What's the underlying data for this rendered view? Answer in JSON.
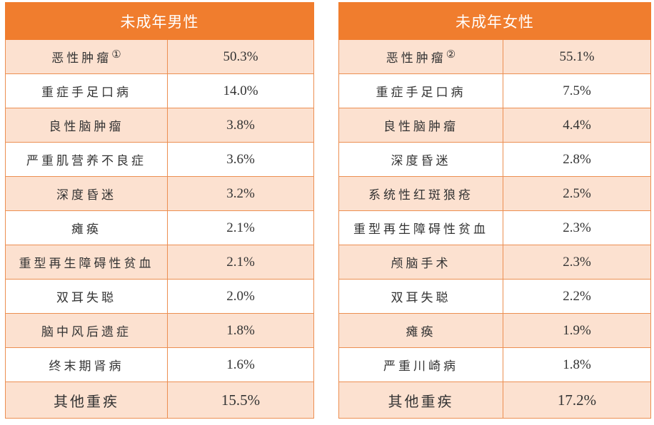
{
  "tables": [
    {
      "header": "未成年男性",
      "rows": [
        {
          "name": "恶性肿瘤",
          "mark": "①",
          "value": "50.3%"
        },
        {
          "name": "重症手足口病",
          "value": "14.0%"
        },
        {
          "name": "良性脑肿瘤",
          "value": "3.8%"
        },
        {
          "name": "严重肌营养不良症",
          "value": "3.6%"
        },
        {
          "name": "深度昏迷",
          "value": "3.2%"
        },
        {
          "name": "瘫痪",
          "value": "2.1%"
        },
        {
          "name": "重型再生障碍性贫血",
          "value": "2.1%"
        },
        {
          "name": "双耳失聪",
          "value": "2.0%"
        },
        {
          "name": "脑中风后遗症",
          "value": "1.8%"
        },
        {
          "name": "终末期肾病",
          "value": "1.6%"
        },
        {
          "name": "其他重疾",
          "value": "15.5%"
        }
      ]
    },
    {
      "header": "未成年女性",
      "rows": [
        {
          "name": "恶性肿瘤",
          "mark": "②",
          "value": "55.1%"
        },
        {
          "name": "重症手足口病",
          "value": "7.5%"
        },
        {
          "name": "良性脑肿瘤",
          "value": "4.4%"
        },
        {
          "name": "深度昏迷",
          "value": "2.8%"
        },
        {
          "name": "系统性红斑狼疮",
          "value": "2.5%"
        },
        {
          "name": "重型再生障碍性贫血",
          "value": "2.3%"
        },
        {
          "name": "颅脑手术",
          "value": "2.3%"
        },
        {
          "name": "双耳失聪",
          "value": "2.2%"
        },
        {
          "name": "瘫痪",
          "value": "1.9%"
        },
        {
          "name": "严重川崎病",
          "value": "1.8%"
        },
        {
          "name": "其他重疾",
          "value": "17.2%"
        }
      ]
    }
  ]
}
